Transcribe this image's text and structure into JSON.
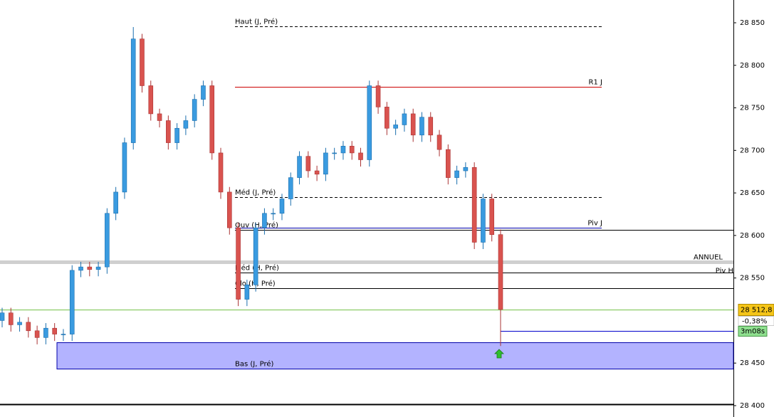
{
  "chart_data": {
    "type": "candlestick",
    "ylim": [
      28400,
      28850
    ],
    "yticks": [
      {
        "value": 28400,
        "label": "28 400"
      },
      {
        "value": 28450,
        "label": "28 450"
      },
      {
        "value": 28550,
        "label": "28 550"
      },
      {
        "value": 28600,
        "label": "28 600"
      },
      {
        "value": 28650,
        "label": "28 650"
      },
      {
        "value": 28700,
        "label": "28 700"
      },
      {
        "value": 28750,
        "label": "28 750"
      },
      {
        "value": 28800,
        "label": "28 800"
      },
      {
        "value": 28850,
        "label": "28 850"
      }
    ],
    "up_color": "#3a9be0",
    "down_color": "#d9534f",
    "open": [
      28500,
      28509,
      28495,
      28498,
      28488,
      28480,
      28491,
      28484,
      28484,
      28559,
      28563,
      28560,
      28563,
      28626,
      28651,
      28709,
      28831,
      28776,
      28743,
      28735,
      28709,
      28726,
      28735,
      28760,
      28776,
      28697,
      28651,
      28609,
      28525,
      28542,
      28609,
      28626,
      28626,
      28643,
      28668,
      28693,
      28676,
      28672,
      28697,
      28697,
      28705,
      28697,
      28689,
      28776,
      28751,
      28726,
      28730,
      28743,
      28718,
      28739,
      28718,
      28701,
      28668,
      28676,
      28680,
      28592,
      28643,
      28601
    ],
    "high": [
      28515,
      28515,
      28504,
      28504,
      28494,
      28497,
      28497,
      28490,
      28565,
      28569,
      28569,
      28569,
      28632,
      28657,
      28715,
      28845,
      28837,
      28782,
      28749,
      28741,
      28732,
      28741,
      28766,
      28782,
      28782,
      28703,
      28657,
      28615,
      28548,
      28615,
      28632,
      28632,
      28649,
      28674,
      28699,
      28699,
      28682,
      28703,
      28703,
      28711,
      28711,
      28703,
      28782,
      28782,
      28757,
      28736,
      28749,
      28749,
      28745,
      28745,
      28724,
      28707,
      28682,
      28686,
      28686,
      28649,
      28649,
      28607
    ],
    "low": [
      28492,
      28487,
      28487,
      28480,
      28472,
      28472,
      28476,
      28476,
      28476,
      28551,
      28552,
      28552,
      28555,
      28618,
      28643,
      28701,
      28768,
      28735,
      28727,
      28701,
      28701,
      28718,
      28727,
      28752,
      28689,
      28643,
      28601,
      28517,
      28517,
      28534,
      28601,
      28618,
      28618,
      28635,
      28660,
      28668,
      28664,
      28664,
      28689,
      28689,
      28689,
      28681,
      28681,
      28743,
      28718,
      28718,
      28722,
      28710,
      28710,
      28710,
      28693,
      28660,
      28660,
      28668,
      28584,
      28584,
      28593,
      28470
    ],
    "close": [
      28509,
      28495,
      28498,
      28488,
      28480,
      28491,
      28484,
      28484,
      28559,
      28563,
      28560,
      28563,
      28626,
      28651,
      28709,
      28831,
      28776,
      28743,
      28735,
      28709,
      28726,
      28735,
      28760,
      28776,
      28697,
      28651,
      28609,
      28525,
      28542,
      28609,
      28626,
      28626,
      28643,
      28668,
      28693,
      28676,
      28672,
      28697,
      28697,
      28705,
      28697,
      28689,
      28776,
      28751,
      28726,
      28730,
      28743,
      28718,
      28739,
      28718,
      28701,
      28668,
      28676,
      28680,
      28592,
      28643,
      28601,
      28513
    ],
    "levels": [
      {
        "label": "Haut (J, Pré)",
        "value": 28846,
        "color": "#000000",
        "style": "dashed",
        "span": "short",
        "label_side": "left"
      },
      {
        "label": "R1 J",
        "value": 28775,
        "color": "#cc0000",
        "style": "solid",
        "span": "short",
        "label_side": "right"
      },
      {
        "label": "Méd (J, Pré)",
        "value": 28645,
        "color": "#000000",
        "style": "dashed",
        "span": "short",
        "label_side": "left"
      },
      {
        "label": "Piv J",
        "value": 28609,
        "color": "#0000aa",
        "style": "solid",
        "span": "short",
        "label_side": "right"
      },
      {
        "label": "Ouv (H, Pré)",
        "value": 28607,
        "color": "#000000",
        "style": "solid",
        "span": "right",
        "label_side": "left"
      },
      {
        "label": "ANNUEL",
        "value": 28569,
        "color": "#cfcfcf",
        "style": "thick",
        "span": "full",
        "label_side": "right"
      },
      {
        "label": "Méd (H, Pré)",
        "value": 28556,
        "color": "#000000",
        "style": "solid",
        "span": "right",
        "label_side": "left"
      },
      {
        "label": "Piv H",
        "value": 28553,
        "color": "#0000cc",
        "style": "solid",
        "span": "none",
        "label_side": "edge"
      },
      {
        "label": "Clo (H, Pré)",
        "value": 28538,
        "color": "#000000",
        "style": "solid",
        "span": "right",
        "label_side": "left"
      },
      {
        "value": 28488,
        "color": "#0000cc",
        "style": "solid",
        "span": "tail"
      },
      {
        "value": 28402,
        "color": "#000000",
        "style": "thick",
        "span": "full"
      }
    ],
    "zone": {
      "label": "Bas (J, Pré)",
      "low": 28443,
      "high": 28474,
      "color": "#b3b3ff"
    },
    "last_price": {
      "value": 28512.8,
      "label": "28 512,8",
      "color": "#f5c518",
      "line_color": "#9ad27a"
    },
    "change": {
      "value": -0.38,
      "label": "-0,38%"
    },
    "timer": "3m08s"
  }
}
